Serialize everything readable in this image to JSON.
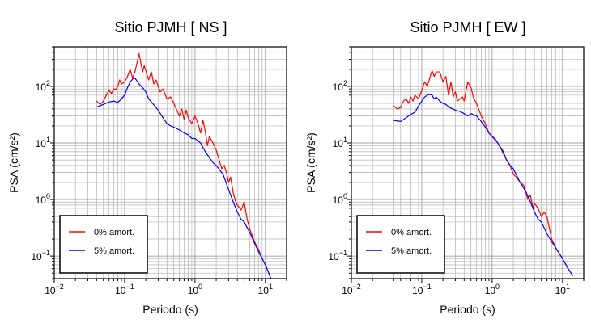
{
  "chart_data": [
    {
      "type": "line",
      "title": "Sitio PJMH [ NS ]",
      "xlabel": "Periodo (s)",
      "ylabel": "PSA (cm/s²)",
      "x_scale": "log",
      "y_scale": "log",
      "xlim": [
        0.01,
        20
      ],
      "ylim": [
        0.04,
        500
      ],
      "x_ticks": [
        {
          "value": 0.01,
          "base": "10",
          "exp": "−2"
        },
        {
          "value": 0.1,
          "base": "10",
          "exp": "−1"
        },
        {
          "value": 1,
          "base": "10",
          "exp": "0"
        },
        {
          "value": 10,
          "base": "10",
          "exp": "1"
        }
      ],
      "y_ticks": [
        {
          "value": 0.1,
          "base": "10",
          "exp": "−1"
        },
        {
          "value": 1,
          "base": "10",
          "exp": "0"
        },
        {
          "value": 10,
          "base": "10",
          "exp": "1"
        },
        {
          "value": 100,
          "base": "10",
          "exp": "2"
        }
      ],
      "grid": true,
      "legend_position": "bottom-left",
      "series": [
        {
          "name": "0% amort.",
          "color": "#ff0000",
          "x": [
            0.04,
            0.045,
            0.05,
            0.055,
            0.06,
            0.065,
            0.07,
            0.075,
            0.08,
            0.085,
            0.09,
            0.1,
            0.11,
            0.12,
            0.13,
            0.14,
            0.15,
            0.16,
            0.17,
            0.18,
            0.19,
            0.2,
            0.22,
            0.24,
            0.26,
            0.28,
            0.3,
            0.32,
            0.35,
            0.38,
            0.4,
            0.45,
            0.5,
            0.55,
            0.6,
            0.65,
            0.7,
            0.75,
            0.8,
            0.9,
            1.0,
            1.1,
            1.2,
            1.3,
            1.4,
            1.5,
            1.6,
            1.8,
            2.0,
            2.2,
            2.4,
            2.6,
            2.8,
            3.0,
            3.2,
            3.5,
            3.8,
            4.0,
            4.5,
            5.0,
            5.5,
            6.0,
            7.0,
            8.0,
            9.0,
            10.0,
            12.0
          ],
          "y": [
            55,
            48,
            55,
            70,
            85,
            75,
            90,
            88,
            100,
            130,
            110,
            120,
            150,
            200,
            140,
            180,
            260,
            380,
            260,
            180,
            230,
            190,
            130,
            180,
            110,
            130,
            100,
            80,
            90,
            70,
            60,
            65,
            50,
            38,
            30,
            40,
            26,
            38,
            28,
            22,
            30,
            22,
            15,
            25,
            16,
            9,
            13,
            10,
            7.5,
            5,
            3.5,
            4,
            3,
            2,
            2.5,
            1.3,
            0.9,
            0.8,
            0.65,
            0.9,
            0.45,
            0.3,
            0.18,
            0.13,
            0.09,
            0.07,
            0.04
          ]
        },
        {
          "name": "5% amort.",
          "color": "#0000ff",
          "x": [
            0.04,
            0.05,
            0.06,
            0.07,
            0.08,
            0.09,
            0.1,
            0.11,
            0.12,
            0.13,
            0.14,
            0.15,
            0.16,
            0.18,
            0.2,
            0.22,
            0.25,
            0.3,
            0.35,
            0.4,
            0.45,
            0.5,
            0.6,
            0.7,
            0.8,
            0.9,
            1.0,
            1.2,
            1.4,
            1.6,
            1.8,
            2.0,
            2.5,
            3.0,
            3.5,
            4.0,
            4.5,
            5.0,
            6.0,
            7.0,
            8.0,
            10.0,
            12.0
          ],
          "y": [
            43,
            48,
            53,
            55,
            52,
            60,
            70,
            95,
            120,
            135,
            140,
            125,
            110,
            95,
            80,
            60,
            50,
            38,
            28,
            22,
            20,
            19,
            17,
            15,
            14,
            12,
            12,
            10,
            7,
            5.5,
            4.5,
            4,
            2.8,
            1.5,
            0.9,
            0.6,
            0.45,
            0.4,
            0.26,
            0.17,
            0.12,
            0.07,
            0.04
          ]
        }
      ]
    },
    {
      "type": "line",
      "title": "Sitio PJMH [ EW ]",
      "xlabel": "Periodo (s)",
      "ylabel": "PSA (cm/s²)",
      "x_scale": "log",
      "y_scale": "log",
      "xlim": [
        0.01,
        20
      ],
      "ylim": [
        0.04,
        500
      ],
      "x_ticks": [
        {
          "value": 0.01,
          "base": "10",
          "exp": "−2"
        },
        {
          "value": 0.1,
          "base": "10",
          "exp": "−1"
        },
        {
          "value": 1,
          "base": "10",
          "exp": "0"
        },
        {
          "value": 10,
          "base": "10",
          "exp": "1"
        }
      ],
      "y_ticks": [
        {
          "value": 0.1,
          "base": "10",
          "exp": "−1"
        },
        {
          "value": 1,
          "base": "10",
          "exp": "0"
        },
        {
          "value": 10,
          "base": "10",
          "exp": "1"
        },
        {
          "value": 100,
          "base": "10",
          "exp": "2"
        }
      ],
      "grid": true,
      "legend_position": "bottom-left",
      "series": [
        {
          "name": "0% amort.",
          "color": "#ff0000",
          "x": [
            0.04,
            0.045,
            0.05,
            0.055,
            0.06,
            0.065,
            0.07,
            0.075,
            0.08,
            0.09,
            0.1,
            0.11,
            0.12,
            0.13,
            0.14,
            0.15,
            0.16,
            0.18,
            0.2,
            0.22,
            0.24,
            0.26,
            0.28,
            0.3,
            0.32,
            0.35,
            0.38,
            0.4,
            0.45,
            0.5,
            0.55,
            0.6,
            0.7,
            0.8,
            0.9,
            1.0,
            1.1,
            1.2,
            1.4,
            1.6,
            1.8,
            2.0,
            2.2,
            2.5,
            2.8,
            3.0,
            3.2,
            3.5,
            3.8,
            4.0,
            4.5,
            5.0,
            5.5,
            6.0,
            7.0,
            8.0,
            10.0,
            12.0,
            14.0
          ],
          "y": [
            45,
            40,
            42,
            55,
            60,
            50,
            65,
            55,
            70,
            60,
            85,
            120,
            100,
            140,
            190,
            150,
            180,
            180,
            120,
            150,
            70,
            120,
            65,
            80,
            55,
            60,
            65,
            55,
            120,
            95,
            60,
            50,
            30,
            22,
            15,
            13,
            12,
            10,
            7,
            5,
            4,
            2.8,
            2.5,
            2,
            1.8,
            1.4,
            1.0,
            1.2,
            0.7,
            0.85,
            0.7,
            0.5,
            0.6,
            0.5,
            0.2,
            0.14,
            0.09,
            0.06,
            0.045
          ]
        },
        {
          "name": "5% amort.",
          "color": "#0000ff",
          "x": [
            0.04,
            0.05,
            0.06,
            0.07,
            0.08,
            0.09,
            0.1,
            0.11,
            0.12,
            0.13,
            0.14,
            0.15,
            0.16,
            0.18,
            0.2,
            0.22,
            0.25,
            0.3,
            0.35,
            0.4,
            0.45,
            0.5,
            0.6,
            0.7,
            0.8,
            0.9,
            1.0,
            1.2,
            1.4,
            1.6,
            1.8,
            2.0,
            2.5,
            3.0,
            3.5,
            4.0,
            4.5,
            5.0,
            6.0,
            7.0,
            8.0,
            10.0,
            12.0,
            14.0
          ],
          "y": [
            25,
            24,
            28,
            32,
            35,
            45,
            55,
            65,
            70,
            72,
            70,
            60,
            65,
            55,
            50,
            48,
            42,
            38,
            36,
            33,
            30,
            33,
            30,
            24,
            19,
            15,
            13,
            10,
            7.5,
            5,
            4,
            3.5,
            2,
            1.4,
            0.9,
            0.6,
            0.45,
            0.4,
            0.25,
            0.18,
            0.14,
            0.09,
            0.06,
            0.045
          ]
        }
      ]
    }
  ]
}
